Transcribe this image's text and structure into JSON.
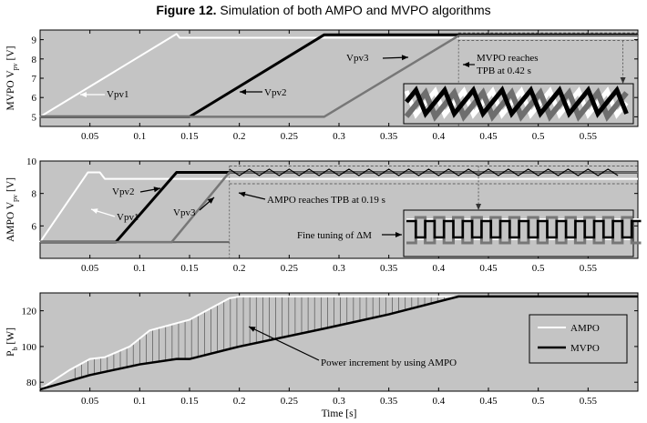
{
  "title": {
    "label": "Figure 12.",
    "text": " Simulation of both AMPO and MVPO algorithms"
  },
  "chart_data": [
    {
      "type": "line",
      "ylabel_main": "MVPO V",
      "ylabel_sub": "pv",
      "ylabel_unit": "[V]",
      "xlim": [
        0,
        0.6
      ],
      "ylim": [
        4.5,
        9.5
      ],
      "yticks": [
        "5",
        "6",
        "7",
        "8",
        "9"
      ],
      "xticks": [
        "0.05",
        "0.1",
        "0.15",
        "0.2",
        "0.25",
        "0.3",
        "0.35",
        "0.4",
        "0.45",
        "0.5",
        "0.55"
      ],
      "series": [
        {
          "name": "Vpv1",
          "color": "#ffffff",
          "x": [
            0,
            0.137,
            0.14,
            0.6
          ],
          "y": [
            5.0,
            9.3,
            9.1,
            9.1
          ]
        },
        {
          "name": "Vpv2",
          "color": "#000000",
          "x": [
            0,
            0.15,
            0.285,
            0.6
          ],
          "y": [
            5.0,
            5.0,
            9.25,
            9.25
          ]
        },
        {
          "name": "Vpv3",
          "color": "#777777",
          "x": [
            0,
            0.285,
            0.42,
            0.6
          ],
          "y": [
            5.0,
            5.0,
            9.2,
            9.2
          ]
        }
      ],
      "annotations": {
        "vpv1": "Vpv1",
        "vpv2": "Vpv2",
        "vpv3": "Vpv3",
        "reach_1": "MVPO reaches",
        "reach_2": "TPB at 0.42 s"
      }
    },
    {
      "type": "line",
      "ylabel_main": "AMPO V",
      "ylabel_sub": "pv",
      "ylabel_unit": "[V]",
      "xlim": [
        0,
        0.6
      ],
      "ylim": [
        4,
        10
      ],
      "yticks": [
        "6",
        "8",
        "10"
      ],
      "xticks": [
        "0.05",
        "0.1",
        "0.15",
        "0.2",
        "0.25",
        "0.3",
        "0.35",
        "0.4",
        "0.45",
        "0.5",
        "0.55"
      ],
      "series": [
        {
          "name": "Vpv1",
          "color": "#ffffff",
          "x": [
            0,
            0.048,
            0.06,
            0.065,
            0.6
          ],
          "y": [
            5.0,
            9.3,
            9.3,
            8.9,
            8.9
          ]
        },
        {
          "name": "Vpv2",
          "color": "#000000",
          "x": [
            0,
            0.076,
            0.137,
            0.6
          ],
          "y": [
            5.0,
            5.0,
            9.3,
            9.3
          ]
        },
        {
          "name": "Vpv3",
          "color": "#777777",
          "x": [
            0,
            0.132,
            0.19,
            0.6
          ],
          "y": [
            5.0,
            5.0,
            9.3,
            9.3
          ]
        }
      ],
      "annotations": {
        "vpv1": "Vpv1",
        "vpv2": "Vpv2",
        "vpv3": "Vpv3",
        "reach": "AMPO reaches TPB at 0.19 s",
        "fine": "Fine tuning of ΔM"
      }
    },
    {
      "type": "line",
      "ylabel_main": "P",
      "ylabel_sub": "b",
      "ylabel_unit": "[W]",
      "xlabel": "Time [s]",
      "xlim": [
        0,
        0.6
      ],
      "ylim": [
        75,
        130
      ],
      "yticks": [
        "80",
        "100",
        "120"
      ],
      "xticks": [
        "0.05",
        "0.1",
        "0.15",
        "0.2",
        "0.25",
        "0.3",
        "0.35",
        "0.4",
        "0.45",
        "0.5",
        "0.55"
      ],
      "series": [
        {
          "name": "AMPO",
          "color": "#ffffff",
          "x": [
            0,
            0.03,
            0.05,
            0.065,
            0.09,
            0.11,
            0.15,
            0.19,
            0.2,
            0.6
          ],
          "y": [
            76,
            87,
            93,
            94,
            100,
            109,
            115,
            127,
            128,
            128
          ]
        },
        {
          "name": "MVPO",
          "color": "#000000",
          "x": [
            0,
            0.05,
            0.1,
            0.137,
            0.15,
            0.2,
            0.285,
            0.35,
            0.42,
            0.6
          ],
          "y": [
            76,
            84,
            90,
            93,
            93,
            100,
            110,
            118,
            128,
            128
          ]
        }
      ],
      "legend": [
        "AMPO",
        "MVPO"
      ],
      "legend_position": "right",
      "annotations": {
        "increment": "Power increment by using AMPO"
      }
    }
  ]
}
